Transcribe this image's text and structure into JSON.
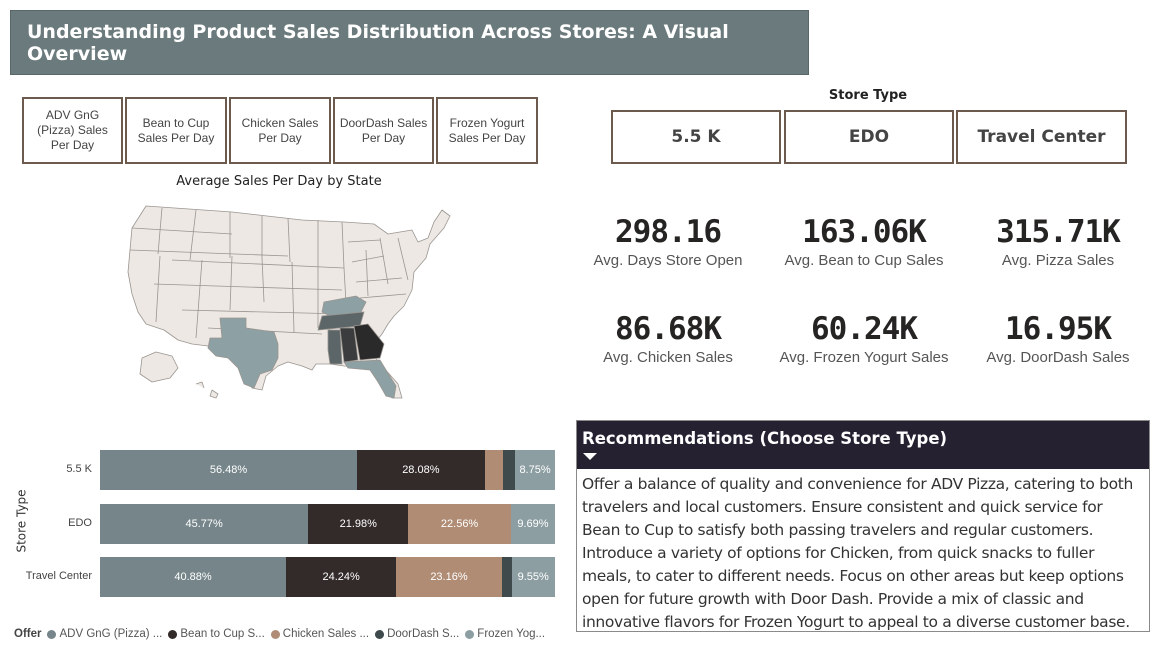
{
  "title": "Understanding Product Sales Distribution Across Stores: A Visual Overview",
  "measure_slicer": {
    "buttons": [
      {
        "label": "ADV GnG (Pizza) Sales Per Day"
      },
      {
        "label": "Bean to Cup Sales Per Day"
      },
      {
        "label": "Chicken Sales Per Day"
      },
      {
        "label": "DoorDash Sales Per Day"
      },
      {
        "label": "Frozen Yogurt Sales Per Day"
      }
    ]
  },
  "map": {
    "title": "Average Sales Per Day by State",
    "colors": {
      "base": "#ede8e3",
      "border": "#9a9590",
      "light": "#8da0a4",
      "mid": "#5c6668",
      "dark": "#3a3c3d",
      "darkest": "#2b2a2a"
    }
  },
  "store_type": {
    "heading": "Store Type",
    "options": [
      "5.5 K",
      "EDO",
      "Travel Center"
    ]
  },
  "kpis": [
    {
      "value": "298.16",
      "label": "Avg. Days Store Open"
    },
    {
      "value": "163.06K",
      "label": "Avg. Bean to Cup Sales"
    },
    {
      "value": "315.71K",
      "label": "Avg. Pizza Sales"
    },
    {
      "value": "86.68K",
      "label": "Avg. Chicken Sales"
    },
    {
      "value": "60.24K",
      "label": "Avg. Frozen Yogurt Sales"
    },
    {
      "value": "16.95K",
      "label": "Avg. DoorDash Sales"
    }
  ],
  "chart_data": {
    "type": "bar",
    "stacked": "100%",
    "orientation": "horizontal",
    "ylabel": "Store Type",
    "categories": [
      "5.5 K",
      "EDO",
      "Travel Center"
    ],
    "legend_title": "Offer",
    "legend_position": "bottom-left",
    "series": [
      {
        "name": "ADV GnG (Pizza) ...",
        "color": "#75858a",
        "values": [
          56.48,
          45.77,
          40.88
        ],
        "labels": [
          "56.48%",
          "45.77%",
          "40.88%"
        ]
      },
      {
        "name": "Bean to Cup S...",
        "color": "#332a2a",
        "values": [
          28.08,
          21.98,
          24.24
        ],
        "labels": [
          "28.08%",
          "21.98%",
          "24.24%"
        ]
      },
      {
        "name": "Chicken Sales ...",
        "color": "#b08c74",
        "values": [
          4.0,
          22.56,
          23.16
        ],
        "labels": [
          "",
          "22.56%",
          "23.16%"
        ]
      },
      {
        "name": "DoorDash S...",
        "color": "#3f4a4d",
        "values": [
          2.69,
          0,
          2.17
        ],
        "labels": [
          "",
          "",
          ""
        ]
      },
      {
        "name": "Frozen Yog...",
        "color": "#8c9ea2",
        "values": [
          8.75,
          9.69,
          9.55
        ],
        "labels": [
          "8.75%",
          "9.69%",
          "9.55%"
        ]
      }
    ]
  },
  "recommendations": {
    "title": "Recommendations (Choose Store Type)",
    "body": "Offer a balance of quality and convenience for ADV Pizza, catering to both travelers and local customers. Ensure consistent and quick service for Bean to Cup to satisfy both passing travelers and regular customers. Introduce a variety of options for Chicken, from quick snacks to fuller meals, to cater to different needs. Focus on other areas but keep options open for future growth with Door Dash. Provide a mix of classic and innovative flavors for Frozen Yogurt to appeal to a diverse customer base."
  }
}
